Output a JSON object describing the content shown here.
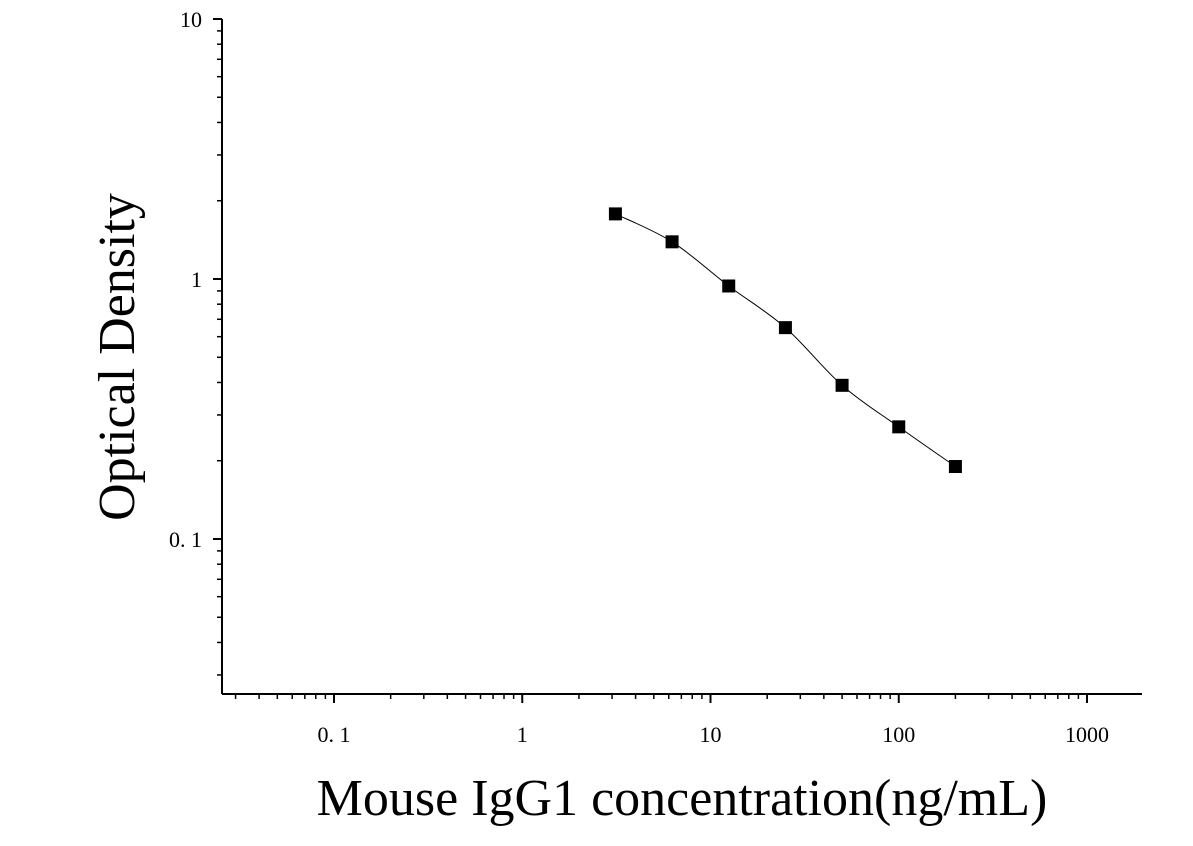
{
  "chart_data": {
    "type": "scatter",
    "title": "",
    "xlabel": "Mouse IgG1 concentration(ng/mL)",
    "ylabel": "Optical Density",
    "xscale": "log",
    "yscale": "log",
    "xlim": [
      0.03,
      1500
    ],
    "ylim": [
      0.025,
      10
    ],
    "grid": false,
    "legend": "none",
    "x_ticks": [
      {
        "value": 0.1,
        "label": "0. 1"
      },
      {
        "value": 1,
        "label": "1"
      },
      {
        "value": 10,
        "label": "10"
      },
      {
        "value": 100,
        "label": "100"
      },
      {
        "value": 1000,
        "label": "1000"
      }
    ],
    "y_ticks": [
      {
        "value": 0.1,
        "label": "0. 1"
      },
      {
        "value": 1,
        "label": "1"
      },
      {
        "value": 10,
        "label": "10"
      }
    ],
    "series": [
      {
        "marker": "square",
        "color": "#000000",
        "points": [
          {
            "x": 3.125,
            "y": 1.78
          },
          {
            "x": 6.25,
            "y": 1.39
          },
          {
            "x": 12.5,
            "y": 0.94
          },
          {
            "x": 25,
            "y": 0.65
          },
          {
            "x": 50,
            "y": 0.39
          },
          {
            "x": 100,
            "y": 0.27
          },
          {
            "x": 200,
            "y": 0.19
          }
        ],
        "fit_curve": true
      }
    ]
  }
}
